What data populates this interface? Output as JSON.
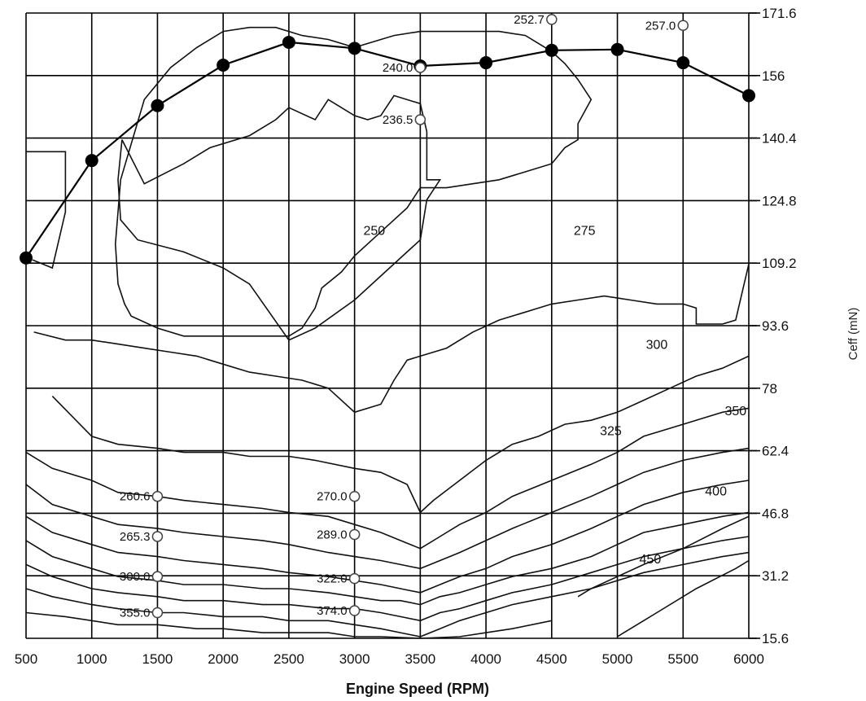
{
  "chart_data": {
    "type": "line",
    "xlabel": "Engine Speed (RPM)",
    "ylabel": "Ceff (mN)",
    "xlim": [
      500,
      6000
    ],
    "ylim": [
      15.6,
      171.6
    ],
    "x_ticks": [
      "500",
      "1000",
      "1500",
      "2000",
      "2500",
      "3000",
      "3500",
      "4000",
      "4500",
      "5000",
      "5500",
      "6000"
    ],
    "y_ticks": [
      "171.6",
      "156",
      "140.4",
      "124.8",
      "109.2",
      "93.6",
      "78",
      "62.4",
      "46.8",
      "31.2",
      "15.6"
    ],
    "grid": true,
    "max_torque_curve": {
      "x": [
        500,
        1000,
        1500,
        2000,
        2500,
        3000,
        3500,
        4000,
        4500,
        5000,
        5500,
        6000
      ],
      "y": [
        110.5,
        134.8,
        148.5,
        158.6,
        164.3,
        162.8,
        158.4,
        159.2,
        162.3,
        162.5,
        159.2,
        151.0
      ]
    },
    "point_labels": [
      {
        "x": 1500,
        "y": 51.0,
        "label": "260.6"
      },
      {
        "x": 1500,
        "y": 41.0,
        "label": "265.3"
      },
      {
        "x": 1500,
        "y": 31.0,
        "label": "300.0"
      },
      {
        "x": 1500,
        "y": 22.0,
        "label": "355.0"
      },
      {
        "x": 3000,
        "y": 51.0,
        "label": "270.0"
      },
      {
        "x": 3000,
        "y": 41.5,
        "label": "289.0"
      },
      {
        "x": 3000,
        "y": 30.5,
        "label": "322.0"
      },
      {
        "x": 3000,
        "y": 22.5,
        "label": "374.0"
      },
      {
        "x": 3500,
        "y": 158.0,
        "label": "240.0"
      },
      {
        "x": 3500,
        "y": 145.0,
        "label": "236.5"
      },
      {
        "x": 4500,
        "y": 170.0,
        "label": "252.7"
      },
      {
        "x": 5500,
        "y": 168.5,
        "label": "257.0"
      }
    ],
    "contour_labels": [
      {
        "x": 3150,
        "y": 117.5,
        "label": "250"
      },
      {
        "x": 4750,
        "y": 117.5,
        "label": "275"
      },
      {
        "x": 5300,
        "y": 89.0,
        "label": "300"
      },
      {
        "x": 4950,
        "y": 67.5,
        "label": "325"
      },
      {
        "x": 5900,
        "y": 72.5,
        "label": "350"
      },
      {
        "x": 5750,
        "y": 52.5,
        "label": "400"
      },
      {
        "x": 5250,
        "y": 35.5,
        "label": "450"
      }
    ],
    "contours": [
      {
        "name": "",
        "x": [
          1230,
          1200,
          1220,
          1350,
          1700,
          2000,
          2200,
          2500,
          2700,
          3000,
          3400,
          3500,
          3550,
          3650,
          3550,
          3550,
          3500,
          3300,
          3200,
          3100,
          3000,
          2900,
          2800,
          2700,
          2500,
          2400,
          2200,
          1900,
          1700,
          1400,
          1230
        ],
        "y": [
          140,
          130,
          120,
          115,
          112,
          108,
          104,
          90,
          93,
          100,
          112,
          115,
          125,
          130,
          130,
          142,
          149,
          151,
          146,
          145,
          146,
          148,
          150,
          145,
          148,
          145,
          141,
          138,
          134,
          129,
          140
        ]
      },
      {
        "name": "",
        "x": [
          1220,
          1200,
          1180,
          1200,
          1250,
          1300,
          1500,
          1700,
          1800,
          2000,
          2200,
          2400,
          2500,
          2600,
          2700,
          2750,
          2900,
          3000,
          3200,
          3400,
          3500,
          3700,
          3900,
          4100,
          4300,
          4500,
          4600,
          4700,
          4700,
          4800,
          4700,
          4600,
          4500,
          4400,
          4300,
          4100,
          3900,
          3700,
          3500,
          3300,
          3100,
          3000,
          2800,
          2600,
          2400,
          2200,
          2000,
          1800,
          1600,
          1400,
          1220
        ],
        "y": [
          130,
          122,
          114,
          104,
          99,
          96,
          93,
          91,
          91,
          91,
          91,
          91,
          91,
          93,
          98,
          103,
          107,
          111,
          117,
          123,
          128,
          128,
          129,
          130,
          132,
          134,
          138,
          140,
          144,
          150,
          155,
          159,
          162,
          164,
          166,
          167,
          167,
          167,
          167,
          166,
          164,
          163,
          165,
          166,
          168,
          168,
          167,
          163,
          158,
          150,
          130
        ]
      },
      {
        "name": "",
        "x": [
          560,
          800,
          1000,
          1200,
          1400,
          1600,
          1800,
          2000,
          2200,
          2400,
          2600,
          2800,
          3000,
          3200,
          3300,
          3400,
          3500,
          3700,
          3900,
          4100,
          4300,
          4500,
          4700,
          4900,
          5100,
          5300,
          5500,
          5600,
          5600,
          5800,
          5900,
          6000
        ],
        "y": [
          92,
          90,
          90,
          89,
          88,
          87,
          86,
          84,
          82,
          81,
          80,
          78,
          72,
          74,
          80,
          85,
          86,
          88,
          92,
          95,
          97,
          99,
          100,
          101,
          100,
          99,
          99,
          98,
          94,
          94,
          95,
          109
        ]
      },
      {
        "name": "",
        "x": [
          700,
          1000,
          1200,
          1500,
          1700,
          2000,
          2200,
          2500,
          2700,
          3000,
          3200,
          3400,
          3500,
          3600,
          3800,
          4000,
          4200,
          4400,
          4600,
          4800,
          5000,
          5200,
          5400,
          5600,
          5800,
          6000
        ],
        "y": [
          76,
          66,
          64,
          63,
          62,
          62,
          61,
          61,
          60,
          58,
          57,
          54,
          47,
          50,
          55,
          60,
          64,
          66,
          69,
          70,
          72,
          75,
          78,
          81,
          83,
          86
        ]
      },
      {
        "name": "",
        "x": [
          500,
          700,
          1000,
          1200,
          1500,
          1700,
          2000,
          2300,
          2500,
          2800,
          3000,
          3200,
          3350,
          3500,
          3650,
          3800,
          4000,
          4200,
          4500,
          4800,
          5000,
          5200,
          5500,
          5800,
          6000
        ],
        "y": [
          62,
          58,
          55,
          52,
          51,
          50,
          49,
          48,
          47,
          46,
          44,
          42,
          40,
          38,
          41,
          44,
          47,
          51,
          55,
          59,
          62,
          66,
          69,
          72,
          73
        ]
      },
      {
        "name": "",
        "x": [
          500,
          700,
          1000,
          1200,
          1500,
          1700,
          2000,
          2300,
          2500,
          2800,
          3000,
          3200,
          3350,
          3500,
          3650,
          3800,
          4000,
          4200,
          4500,
          4800,
          5000,
          5200,
          5500,
          5800,
          6000
        ],
        "y": [
          54,
          49,
          46,
          44,
          43,
          42,
          41,
          40,
          39,
          37,
          36,
          35,
          34,
          33,
          35,
          37,
          40,
          43,
          47,
          51,
          54,
          57,
          60,
          62,
          63
        ]
      },
      {
        "name": "",
        "x": [
          500,
          700,
          1000,
          1200,
          1500,
          1700,
          2000,
          2300,
          2500,
          2800,
          3000,
          3200,
          3350,
          3500,
          3650,
          3800,
          4000,
          4200,
          4500,
          4800,
          5000,
          5200,
          5500,
          5800,
          6000
        ],
        "y": [
          46,
          42,
          39,
          37,
          36,
          35,
          34,
          33,
          32,
          31,
          30,
          29,
          28,
          27,
          29,
          31,
          33,
          36,
          39,
          43,
          46,
          49,
          52,
          54,
          55
        ]
      },
      {
        "name": "",
        "x": [
          500,
          700,
          1000,
          1200,
          1500,
          1700,
          2000,
          2300,
          2500,
          2800,
          3000,
          3200,
          3350,
          3500,
          3650,
          3800,
          4000,
          4200,
          4500,
          4800,
          5000,
          5200,
          5500,
          5800,
          6000
        ],
        "y": [
          40,
          36,
          33,
          31,
          30,
          29,
          29,
          28,
          28,
          27,
          26,
          25,
          25,
          24,
          26,
          27,
          29,
          31,
          33,
          36,
          39,
          42,
          44,
          46,
          47
        ]
      },
      {
        "name": "",
        "x": [
          500,
          700,
          1000,
          1200,
          1500,
          1700,
          2000,
          2300,
          2500,
          2800,
          3000,
          3200,
          3350,
          3500,
          3650,
          3800,
          4000,
          4200,
          4500,
          4800,
          5000,
          5200,
          5500,
          5800,
          6000
        ],
        "y": [
          34,
          31,
          28,
          27,
          26,
          25,
          25,
          24,
          24,
          23,
          23,
          22,
          21,
          20,
          22,
          23,
          25,
          27,
          29,
          32,
          34,
          36,
          38,
          40,
          41
        ]
      },
      {
        "name": "",
        "x": [
          500,
          700,
          1000,
          1200,
          1500,
          1700,
          2000,
          2300,
          2500,
          2800,
          3000,
          3200,
          3350,
          3500,
          3650,
          3800,
          4000,
          4200,
          4500,
          4800,
          5000,
          5200,
          5500,
          5800,
          6000
        ],
        "y": [
          28,
          26,
          24,
          23,
          22,
          22,
          21,
          21,
          20,
          20,
          19,
          18,
          17,
          16,
          18,
          20,
          22,
          24,
          26,
          28,
          30,
          32,
          34,
          36,
          37
        ]
      },
      {
        "name": "",
        "x": [
          500,
          800,
          1000,
          1200,
          1500,
          1800,
          2000,
          2300,
          2500,
          2800,
          3000,
          3200,
          3500,
          3800,
          4000,
          4200,
          4500
        ],
        "y": [
          22,
          21,
          20,
          19,
          19,
          18,
          18,
          17,
          17,
          17,
          16,
          16,
          15.6,
          16,
          17,
          18,
          20
        ]
      },
      {
        "name": "",
        "x": [
          4700,
          4800,
          5000,
          5200,
          5500,
          5800,
          6000
        ],
        "y": [
          26,
          28,
          31,
          34,
          38,
          43,
          46
        ]
      },
      {
        "name": "",
        "x": [
          5000,
          5300,
          5600,
          5900,
          6000
        ],
        "y": [
          16,
          22,
          28,
          33,
          35
        ]
      },
      {
        "name": "",
        "x": [
          500,
          800,
          800,
          700,
          550
        ],
        "y": [
          137,
          137,
          122,
          108,
          110
        ]
      }
    ]
  }
}
